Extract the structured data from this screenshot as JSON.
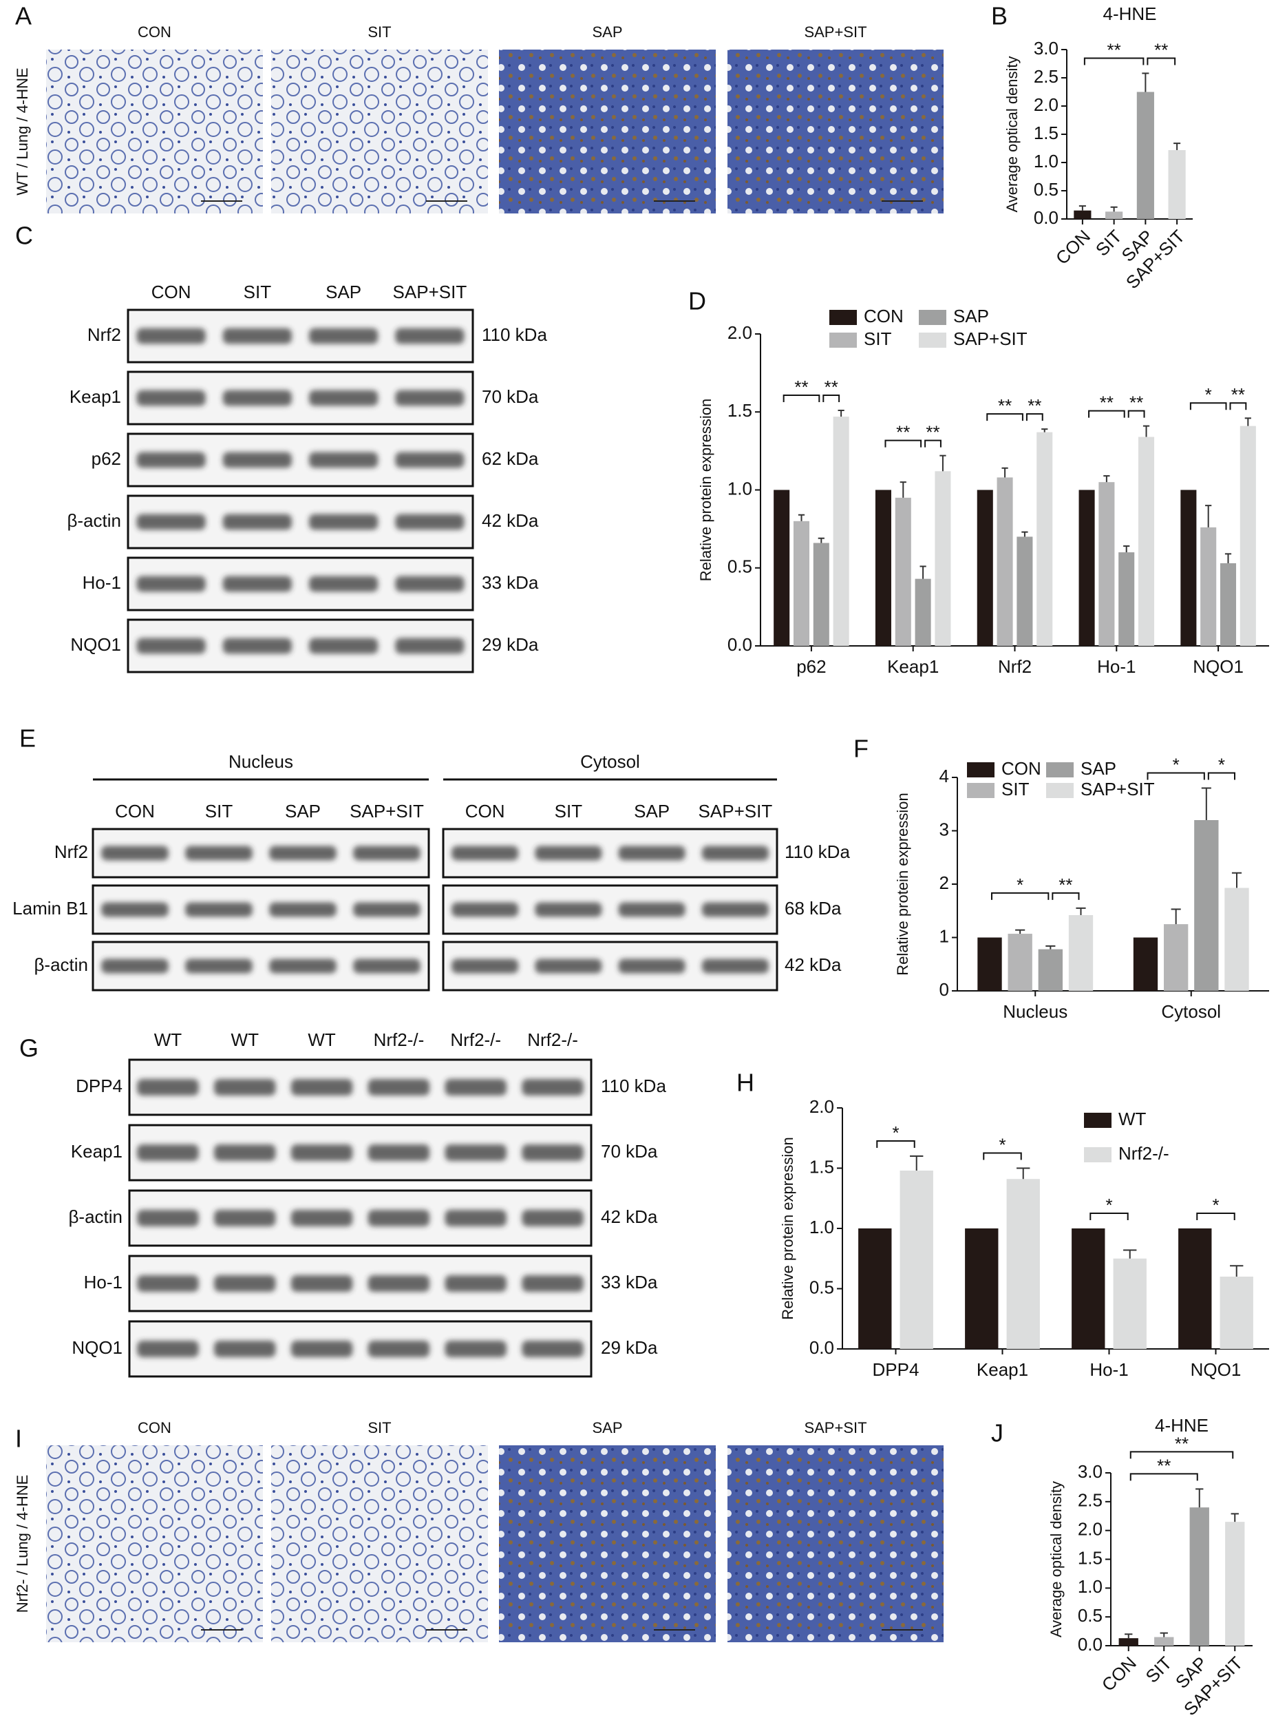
{
  "panels": {
    "A": {
      "letter": "A",
      "side_label": "WT / Lung / 4-HNE",
      "images": [
        "CON",
        "SIT",
        "SAP",
        "SAP+SIT"
      ]
    },
    "C": {
      "letter": "C",
      "groups": [
        {
          "columns": [
            "CON",
            "SIT",
            "SAP",
            "SAP+SIT"
          ]
        }
      ],
      "rows": [
        {
          "protein": "Nrf2",
          "size": "110 kDa"
        },
        {
          "protein": "Keap1",
          "size": "70 kDa"
        },
        {
          "protein": "p62",
          "size": "62 kDa"
        },
        {
          "protein": "β-actin",
          "size": "42 kDa"
        },
        {
          "protein": "Ho-1",
          "size": "33 kDa"
        },
        {
          "protein": "NQO1",
          "size": "29 kDa"
        }
      ]
    },
    "E": {
      "letter": "E",
      "groups": [
        {
          "title": "Nucleus",
          "columns": [
            "CON",
            "SIT",
            "SAP",
            "SAP+SIT"
          ]
        },
        {
          "title": "Cytosol",
          "columns": [
            "CON",
            "SIT",
            "SAP",
            "SAP+SIT"
          ]
        }
      ],
      "rows": [
        {
          "protein": "Nrf2",
          "size": "110 kDa"
        },
        {
          "protein": "Lamin B1",
          "size": "68 kDa"
        },
        {
          "protein": "β-actin",
          "size": "42 kDa"
        }
      ]
    },
    "G": {
      "letter": "G",
      "groups": [
        {
          "columns": [
            "WT",
            "WT",
            "WT",
            "Nrf2-/-",
            "Nrf2-/-",
            "Nrf2-/-"
          ]
        }
      ],
      "rows": [
        {
          "protein": "DPP4",
          "size": "110 kDa"
        },
        {
          "protein": "Keap1",
          "size": "70 kDa"
        },
        {
          "protein": "β-actin",
          "size": "42 kDa"
        },
        {
          "protein": "Ho-1",
          "size": "33 kDa"
        },
        {
          "protein": "NQO1",
          "size": "29 kDa"
        }
      ]
    },
    "I": {
      "letter": "I",
      "side_label": "Nrf2- / Lung / 4-HNE",
      "images": [
        "CON",
        "SIT",
        "SAP",
        "SAP+SIT"
      ]
    }
  },
  "chart_data": [
    {
      "panel": "B",
      "type": "bar",
      "title": "4-HNE",
      "y_label": "Average optical density",
      "categories": [
        "CON",
        "SIT",
        "SAP",
        "SAP+SIT"
      ],
      "values": [
        0.15,
        0.13,
        2.25,
        1.22
      ],
      "errors": [
        0.08,
        0.08,
        0.33,
        0.12
      ],
      "colors": [
        "#231815",
        "#b5b5b6",
        "#9fa0a0",
        "#dcdddd"
      ],
      "ylim": [
        0,
        3
      ],
      "yticks": [
        {
          "value": 0,
          "label": "0.0"
        },
        {
          "value": 0.5,
          "label": "0.5"
        },
        {
          "value": 1,
          "label": "1.0"
        },
        {
          "value": 1.5,
          "label": "1.5"
        },
        {
          "value": 2,
          "label": "2.0"
        },
        {
          "value": 2.5,
          "label": "2.5"
        },
        {
          "value": 3,
          "label": "3.0"
        }
      ],
      "significance": [
        {
          "from": "CON",
          "to": "SAP",
          "label": "**"
        },
        {
          "from": "SAP",
          "to": "SAP+SIT",
          "label": "**"
        }
      ]
    },
    {
      "panel": "D",
      "type": "bar",
      "y_label": "Relative protein expression",
      "legend": "top",
      "categories": [
        "p62",
        "Keap1",
        "Nrf2",
        "Ho-1",
        "NQO1"
      ],
      "series": [
        {
          "name": "CON",
          "color": "#231815",
          "values": [
            1,
            1,
            1,
            1,
            1
          ]
        },
        {
          "name": "SIT",
          "color": "#b5b5b6",
          "values": [
            0.8,
            0.95,
            1.08,
            1.05,
            0.76
          ],
          "errors": [
            0.04,
            0.1,
            0.06,
            0.04,
            0.14
          ]
        },
        {
          "name": "SAP",
          "color": "#9fa0a0",
          "values": [
            0.66,
            0.43,
            0.7,
            0.6,
            0.53
          ],
          "errors": [
            0.03,
            0.08,
            0.03,
            0.04,
            0.06
          ]
        },
        {
          "name": "SAP+SIT",
          "color": "#dcdddd",
          "values": [
            1.47,
            1.12,
            1.37,
            1.34,
            1.41
          ],
          "errors": [
            0.04,
            0.1,
            0.02,
            0.07,
            0.05
          ]
        }
      ],
      "ylim": [
        0,
        2
      ],
      "yticks": [
        {
          "value": 0,
          "label": "0.0"
        },
        {
          "value": 0.5,
          "label": "0.5"
        },
        {
          "value": 1,
          "label": "1.0"
        },
        {
          "value": 1.5,
          "label": "1.5"
        },
        {
          "value": 2,
          "label": "2.0"
        }
      ],
      "significance": [
        {
          "category": "p62",
          "from": "CON",
          "to": "SAP",
          "label": "**"
        },
        {
          "category": "p62",
          "from": "SAP",
          "to": "SAP+SIT",
          "label": "**"
        },
        {
          "category": "Keap1",
          "from": "CON",
          "to": "SAP",
          "label": "**"
        },
        {
          "category": "Keap1",
          "from": "SAP",
          "to": "SAP+SIT",
          "label": "**"
        },
        {
          "category": "Nrf2",
          "from": "CON",
          "to": "SAP",
          "label": "**"
        },
        {
          "category": "Nrf2",
          "from": "SAP",
          "to": "SAP+SIT",
          "label": "**"
        },
        {
          "category": "Ho-1",
          "from": "CON",
          "to": "SAP",
          "label": "**"
        },
        {
          "category": "Ho-1",
          "from": "SAP",
          "to": "SAP+SIT",
          "label": "**"
        },
        {
          "category": "NQO1",
          "from": "CON",
          "to": "SAP",
          "label": "*"
        },
        {
          "category": "NQO1",
          "from": "SAP",
          "to": "SAP+SIT",
          "label": "**"
        }
      ]
    },
    {
      "panel": "F",
      "type": "bar",
      "y_label": "Relative protein expression",
      "legend": "upper left",
      "categories": [
        "Nucleus",
        "Cytosol"
      ],
      "series": [
        {
          "name": "CON",
          "color": "#231815",
          "values": [
            1,
            1
          ]
        },
        {
          "name": "SIT",
          "color": "#b5b5b6",
          "values": [
            1.07,
            1.25
          ],
          "errors": [
            0.07,
            0.28
          ]
        },
        {
          "name": "SAP",
          "color": "#9fa0a0",
          "values": [
            0.78,
            3.2
          ],
          "errors": [
            0.06,
            0.6
          ]
        },
        {
          "name": "SAP+SIT",
          "color": "#dcdddd",
          "values": [
            1.42,
            1.93
          ],
          "errors": [
            0.13,
            0.28
          ]
        }
      ],
      "ylim": [
        0,
        4
      ],
      "yticks": [
        0,
        1,
        2,
        3,
        4
      ],
      "significance": [
        {
          "category": "Nucleus",
          "from": "CON",
          "to": "SAP",
          "label": "*"
        },
        {
          "category": "Nucleus",
          "from": "SAP",
          "to": "SAP+SIT",
          "label": "**"
        },
        {
          "category": "Cytosol",
          "from": "CON",
          "to": "SAP",
          "label": "*"
        },
        {
          "category": "Cytosol",
          "from": "SAP",
          "to": "SAP+SIT",
          "label": "*"
        }
      ]
    },
    {
      "panel": "H",
      "type": "bar",
      "y_label": "Relative protein expression",
      "legend": "upper right",
      "categories": [
        "DPP4",
        "Keap1",
        "Ho-1",
        "NQO1"
      ],
      "series": [
        {
          "name": "WT",
          "color": "#231815",
          "values": [
            1,
            1,
            1,
            1
          ]
        },
        {
          "name": "Nrf2-/-",
          "color": "#dcdddd",
          "values": [
            1.48,
            1.41,
            0.75,
            0.6
          ],
          "errors": [
            0.12,
            0.09,
            0.07,
            0.09
          ]
        }
      ],
      "ylim": [
        0,
        2
      ],
      "yticks": [
        {
          "value": 0,
          "label": "0.0"
        },
        {
          "value": 0.5,
          "label": "0.5"
        },
        {
          "value": 1,
          "label": "1.0"
        },
        {
          "value": 1.5,
          "label": "1.5"
        },
        {
          "value": 2,
          "label": "2.0"
        }
      ],
      "significance": [
        {
          "category": "DPP4",
          "from": "WT",
          "to": "Nrf2-/-",
          "label": "*"
        },
        {
          "category": "Keap1",
          "from": "WT",
          "to": "Nrf2-/-",
          "label": "*"
        },
        {
          "category": "Ho-1",
          "from": "WT",
          "to": "Nrf2-/-",
          "label": "*"
        },
        {
          "category": "NQO1",
          "from": "WT",
          "to": "Nrf2-/-",
          "label": "*"
        }
      ]
    },
    {
      "panel": "J",
      "type": "bar",
      "title": "4-HNE",
      "y_label": "Average optical density",
      "categories": [
        "CON",
        "SIT",
        "SAP",
        "SAP+SIT"
      ],
      "values": [
        0.13,
        0.15,
        2.4,
        2.15
      ],
      "errors": [
        0.07,
        0.07,
        0.32,
        0.14
      ],
      "colors": [
        "#231815",
        "#b5b5b6",
        "#9fa0a0",
        "#dcdddd"
      ],
      "ylim": [
        0,
        3
      ],
      "yticks": [
        {
          "value": 0,
          "label": "0.0"
        },
        {
          "value": 0.5,
          "label": "0.5"
        },
        {
          "value": 1,
          "label": "1.0"
        },
        {
          "value": 1.5,
          "label": "1.5"
        },
        {
          "value": 2,
          "label": "2.0"
        },
        {
          "value": 2.5,
          "label": "2.5"
        },
        {
          "value": 3,
          "label": "3.0"
        }
      ],
      "significance": [
        {
          "from": "CON",
          "to": "SAP",
          "label": "**"
        },
        {
          "from": "CON",
          "to": "SAP+SIT",
          "label": "**"
        }
      ]
    }
  ]
}
